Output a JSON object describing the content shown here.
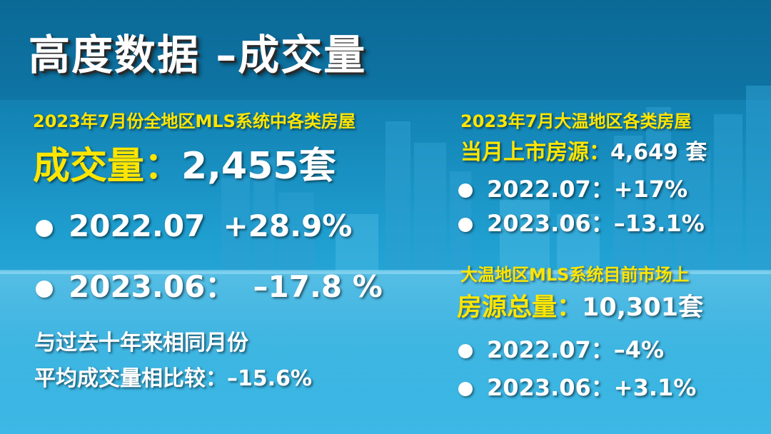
{
  "title": "高度数据 –成交量",
  "left": {
    "intro": "2023年7月份全地区MLS系统中各类房屋",
    "headline_label": "成交量：",
    "headline_value": "2,455套",
    "items": [
      {
        "date": "2022.07",
        "change": "+28.9%"
      },
      {
        "date": "2023.06：",
        "change": "–17.8 %"
      }
    ],
    "compare_line1": "与过去十年来相同月份",
    "compare_line2_label": "平均成交量相比较：",
    "compare_line2_value": "–15.6%"
  },
  "right_top": {
    "intro": "2023年7月大温地区各类房屋",
    "label": "当月上市房源：",
    "value": "4,649 套",
    "items": [
      {
        "date": "2022.07：",
        "change": "+17%"
      },
      {
        "date": "2023.06：",
        "change": "–13.1%"
      }
    ]
  },
  "right_bottom": {
    "intro": "大温地区MLS系统目前市场上",
    "label": "房源总量：",
    "value": "10,301套",
    "items": [
      {
        "date": "2022.07：",
        "change": "–4%"
      },
      {
        "date": "2023.06：",
        "change": "+3.1%"
      }
    ]
  },
  "colors": {
    "highlight": "#ffe600",
    "text": "#ffffff",
    "background": "#1a8fc4"
  },
  "icons": {
    "bullet": "bullet-dot-icon"
  }
}
